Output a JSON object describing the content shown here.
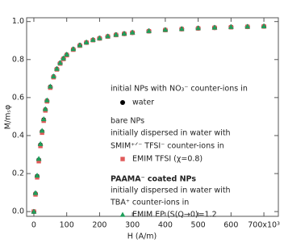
{
  "chart_data": {
    "type": "scatter",
    "y_label": "M/mₛφ",
    "x_label": "H (A/m)",
    "xlim": [
      -22,
      744
    ],
    "ylim": [
      -0.025,
      1.02
    ],
    "xticks": [
      0,
      100,
      200,
      300,
      400,
      500,
      600,
      {
        "value": 700,
        "label": "700x10³"
      }
    ],
    "yticks": [
      {
        "value": 0,
        "label": "0.0"
      },
      {
        "value": 0.2,
        "label": "0.2"
      },
      {
        "value": 0.4,
        "label": "0.4"
      },
      {
        "value": 0.6,
        "label": "0.6"
      },
      {
        "value": 0.8,
        "label": "0.8"
      },
      {
        "value": 1,
        "label": "1.0"
      }
    ],
    "x": [
      0,
      5,
      10,
      15,
      20,
      25,
      30,
      35,
      40,
      50,
      60,
      70,
      80,
      90,
      100,
      120,
      140,
      160,
      180,
      200,
      225,
      250,
      275,
      300,
      350,
      400,
      450,
      500,
      550,
      600,
      650,
      700
    ],
    "series": [
      {
        "name": "water",
        "color": "#000000",
        "marker": "circle",
        "values": [
          0,
          0.094,
          0.186,
          0.272,
          0.351,
          0.421,
          0.483,
          0.536,
          0.583,
          0.656,
          0.71,
          0.75,
          0.781,
          0.805,
          0.825,
          0.854,
          0.875,
          0.89,
          0.903,
          0.912,
          0.922,
          0.93,
          0.936,
          0.942,
          0.95,
          0.956,
          0.961,
          0.965,
          0.968,
          0.971,
          0.973,
          0.975
        ]
      },
      {
        "name": "EMIM TFSI (χ=0.8)",
        "color": "#e05a5a",
        "marker": "square",
        "values": [
          0,
          0.09,
          0.18,
          0.265,
          0.345,
          0.415,
          0.478,
          0.532,
          0.58,
          0.652,
          0.707,
          0.748,
          0.779,
          0.803,
          0.823,
          0.852,
          0.873,
          0.889,
          0.902,
          0.911,
          0.921,
          0.929,
          0.935,
          0.941,
          0.949,
          0.955,
          0.96,
          0.964,
          0.967,
          0.97,
          0.972,
          0.974
        ]
      },
      {
        "name": "EMIM EP (S(Q→0)=1.2",
        "color": "#1f9e5a",
        "marker": "triangle",
        "values": [
          0,
          0.098,
          0.19,
          0.278,
          0.356,
          0.426,
          0.487,
          0.54,
          0.586,
          0.659,
          0.712,
          0.752,
          0.783,
          0.807,
          0.827,
          0.856,
          0.876,
          0.891,
          0.904,
          0.913,
          0.923,
          0.931,
          0.937,
          0.943,
          0.951,
          0.957,
          0.962,
          0.966,
          0.969,
          0.972,
          0.974,
          0.976
        ]
      }
    ],
    "annotations": [
      "initial NPs with NO₃⁻ counter-ions in",
      "bare NPs",
      "initially dispersed in water with",
      "SMIM⁺ᐟ⁻ TFSI⁻ counter-ions in",
      "PAAMA⁻ coated NPs",
      "initially dispersed in water with",
      "TBA⁺ counter-ions in"
    ]
  }
}
